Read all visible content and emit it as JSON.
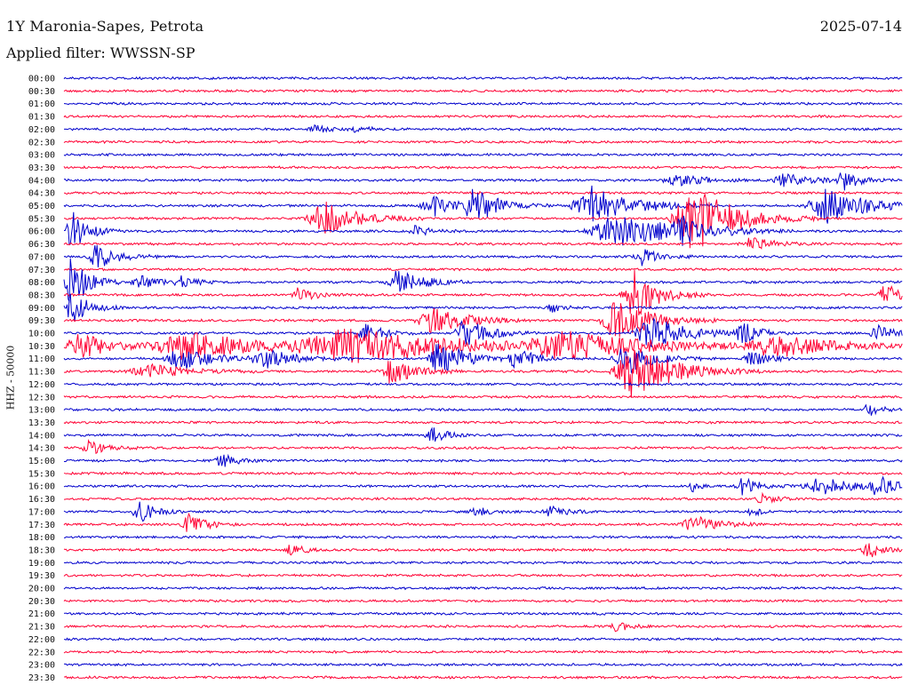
{
  "header": {
    "title": "1Y Maronia-Sapes, Petrota",
    "date": "2025-07-14",
    "filter": "Applied filter: WWSSN-SP"
  },
  "chart_data": {
    "type": "line",
    "ylabel": "HHZ - 50000",
    "colors": [
      "#0000cc",
      "#ff0033"
    ],
    "rows": [
      "00:00",
      "00:30",
      "01:00",
      "01:30",
      "02:00",
      "02:30",
      "03:00",
      "03:30",
      "04:00",
      "04:30",
      "05:00",
      "05:30",
      "06:00",
      "06:30",
      "07:00",
      "07:30",
      "08:00",
      "08:30",
      "09:00",
      "09:30",
      "10:00",
      "10:30",
      "11:00",
      "11:30",
      "12:00",
      "12:30",
      "13:00",
      "13:30",
      "14:00",
      "14:30",
      "15:00",
      "15:30",
      "16:00",
      "16:30",
      "17:00",
      "17:30",
      "18:00",
      "18:30",
      "19:00",
      "19:30",
      "20:00",
      "20:30",
      "21:00",
      "21:30",
      "22:00",
      "22:30",
      "23:00",
      "23:30"
    ],
    "events": [
      {
        "row": 4,
        "x": 0.3,
        "amp": 4,
        "w": 0.02
      },
      {
        "row": 4,
        "x": 0.35,
        "amp": 4,
        "w": 0.015
      },
      {
        "row": 8,
        "x": 0.73,
        "amp": 6,
        "w": 0.04
      },
      {
        "row": 8,
        "x": 0.86,
        "amp": 8,
        "w": 0.03
      },
      {
        "row": 8,
        "x": 0.93,
        "amp": 10,
        "w": 0.02
      },
      {
        "row": 10,
        "x": 0.44,
        "amp": 12,
        "w": 0.03
      },
      {
        "row": 10,
        "x": 0.49,
        "amp": 18,
        "w": 0.03
      },
      {
        "row": 10,
        "x": 0.63,
        "amp": 22,
        "w": 0.05
      },
      {
        "row": 10,
        "x": 0.91,
        "amp": 20,
        "w": 0.05
      },
      {
        "row": 11,
        "x": 0.31,
        "amp": 20,
        "w": 0.04
      },
      {
        "row": 11,
        "x": 0.75,
        "amp": 40,
        "w": 0.05
      },
      {
        "row": 12,
        "x": 0.01,
        "amp": 24,
        "w": 0.02
      },
      {
        "row": 12,
        "x": 0.42,
        "amp": 6,
        "w": 0.02
      },
      {
        "row": 12,
        "x": 0.66,
        "amp": 20,
        "w": 0.07
      },
      {
        "row": 12,
        "x": 0.74,
        "amp": 12,
        "w": 0.03
      },
      {
        "row": 13,
        "x": 0.82,
        "amp": 8,
        "w": 0.03
      },
      {
        "row": 14,
        "x": 0.04,
        "amp": 14,
        "w": 0.025
      },
      {
        "row": 14,
        "x": 0.69,
        "amp": 10,
        "w": 0.02
      },
      {
        "row": 16,
        "x": 0.01,
        "amp": 30,
        "w": 0.02
      },
      {
        "row": 16,
        "x": 0.09,
        "amp": 8,
        "w": 0.02
      },
      {
        "row": 16,
        "x": 0.14,
        "amp": 6,
        "w": 0.02
      },
      {
        "row": 16,
        "x": 0.4,
        "amp": 14,
        "w": 0.03
      },
      {
        "row": 17,
        "x": 0.28,
        "amp": 8,
        "w": 0.02
      },
      {
        "row": 17,
        "x": 0.68,
        "amp": 28,
        "w": 0.03
      },
      {
        "row": 17,
        "x": 0.98,
        "amp": 12,
        "w": 0.02
      },
      {
        "row": 18,
        "x": 0.01,
        "amp": 20,
        "w": 0.02
      },
      {
        "row": 18,
        "x": 0.58,
        "amp": 6,
        "w": 0.015
      },
      {
        "row": 19,
        "x": 0.44,
        "amp": 16,
        "w": 0.04
      },
      {
        "row": 19,
        "x": 0.66,
        "amp": 24,
        "w": 0.04
      },
      {
        "row": 20,
        "x": 0.36,
        "amp": 12,
        "w": 0.02
      },
      {
        "row": 20,
        "x": 0.48,
        "amp": 16,
        "w": 0.03
      },
      {
        "row": 20,
        "x": 0.7,
        "amp": 20,
        "w": 0.04
      },
      {
        "row": 20,
        "x": 0.81,
        "amp": 14,
        "w": 0.02
      },
      {
        "row": 20,
        "x": 0.97,
        "amp": 10,
        "w": 0.02
      },
      {
        "row": 21,
        "x": 0.02,
        "amp": 14,
        "w": 0.04
      },
      {
        "row": 21,
        "x": 0.15,
        "amp": 16,
        "w": 0.1
      },
      {
        "row": 21,
        "x": 0.35,
        "amp": 18,
        "w": 0.15
      },
      {
        "row": 21,
        "x": 0.6,
        "amp": 14,
        "w": 0.1
      },
      {
        "row": 21,
        "x": 0.85,
        "amp": 12,
        "w": 0.08
      },
      {
        "row": 22,
        "x": 0.14,
        "amp": 12,
        "w": 0.04
      },
      {
        "row": 22,
        "x": 0.24,
        "amp": 10,
        "w": 0.04
      },
      {
        "row": 22,
        "x": 0.45,
        "amp": 22,
        "w": 0.03
      },
      {
        "row": 22,
        "x": 0.54,
        "amp": 14,
        "w": 0.02
      },
      {
        "row": 22,
        "x": 0.67,
        "amp": 18,
        "w": 0.03
      },
      {
        "row": 22,
        "x": 0.82,
        "amp": 10,
        "w": 0.02
      },
      {
        "row": 23,
        "x": 0.39,
        "amp": 14,
        "w": 0.03
      },
      {
        "row": 23,
        "x": 0.68,
        "amp": 30,
        "w": 0.05
      },
      {
        "row": 23,
        "x": 0.1,
        "amp": 8,
        "w": 0.05
      },
      {
        "row": 26,
        "x": 0.96,
        "amp": 6,
        "w": 0.02
      },
      {
        "row": 28,
        "x": 0.44,
        "amp": 8,
        "w": 0.02
      },
      {
        "row": 29,
        "x": 0.03,
        "amp": 8,
        "w": 0.02
      },
      {
        "row": 30,
        "x": 0.19,
        "amp": 8,
        "w": 0.02
      },
      {
        "row": 32,
        "x": 0.75,
        "amp": 6,
        "w": 0.01
      },
      {
        "row": 32,
        "x": 0.81,
        "amp": 10,
        "w": 0.02
      },
      {
        "row": 32,
        "x": 0.9,
        "amp": 10,
        "w": 0.04
      },
      {
        "row": 32,
        "x": 0.97,
        "amp": 12,
        "w": 0.02
      },
      {
        "row": 33,
        "x": 0.83,
        "amp": 6,
        "w": 0.02
      },
      {
        "row": 34,
        "x": 0.09,
        "amp": 12,
        "w": 0.02
      },
      {
        "row": 34,
        "x": 0.49,
        "amp": 5,
        "w": 0.02
      },
      {
        "row": 34,
        "x": 0.58,
        "amp": 6,
        "w": 0.02
      },
      {
        "row": 34,
        "x": 0.82,
        "amp": 6,
        "w": 0.01
      },
      {
        "row": 35,
        "x": 0.15,
        "amp": 12,
        "w": 0.02
      },
      {
        "row": 35,
        "x": 0.75,
        "amp": 10,
        "w": 0.03
      },
      {
        "row": 37,
        "x": 0.27,
        "amp": 8,
        "w": 0.015
      },
      {
        "row": 37,
        "x": 0.96,
        "amp": 8,
        "w": 0.02
      },
      {
        "row": 43,
        "x": 0.66,
        "amp": 6,
        "w": 0.015
      }
    ]
  }
}
